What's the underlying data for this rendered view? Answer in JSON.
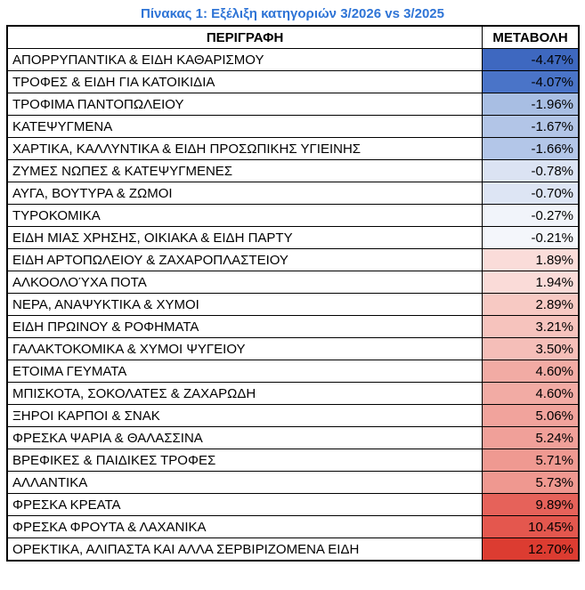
{
  "title": "Πίνακας 1: Εξέλιξη κατηγοριών 3/2026 vs 3/2025",
  "colors": {
    "title": "#2E74D6",
    "border": "#000000",
    "text": "#000000",
    "scale_negative_end": "#3E68C0",
    "scale_mid": "#FFFFFF",
    "scale_positive_end": "#DC3C31"
  },
  "table": {
    "headers": [
      "ΠΕΡΙΓΡΑΦΗ",
      "ΜΕΤΑΒΟΛΗ"
    ],
    "rows": [
      {
        "label": "ΑΠΟΡΡΥΠΑΝΤΙΚΑ & ΕΙΔΗ ΚΑΘΑΡΙΣΜΟΥ",
        "value": "-4.47%",
        "color": "#3E68C0"
      },
      {
        "label": "ΤΡΟΦΕΣ & ΕΙΔΗ ΓΙΑ ΚΑΤΟΙΚΙΔΙΑ",
        "value": "-4.07%",
        "color": "#4A74C8"
      },
      {
        "label": "ΤΡΟΦΙΜΑ ΠΑΝΤΟΠΩΛΕΙΟΥ",
        "value": "-1.96%",
        "color": "#A8BEE3"
      },
      {
        "label": "ΚΑΤΕΨΥΓΜΕΝΑ",
        "value": "-1.67%",
        "color": "#B2C5E7"
      },
      {
        "label": "ΧΑΡΤΙΚΑ, ΚΑΛΛΥΝΤΙΚΑ & ΕΙΔΗ ΠΡΟΣΩΠΙΚΗΣ ΥΓΙΕΙΝΗΣ",
        "value": "-1.66%",
        "color": "#B3C6E8"
      },
      {
        "label": "ΖΥΜΕΣ ΝΩΠΕΣ & ΚΑΤΕΨΥΓΜΕΝΕΣ",
        "value": "-0.78%",
        "color": "#DBE3F3"
      },
      {
        "label": "ΑΥΓΑ, ΒΟΥΤΥΡΑ & ΖΩΜΟΙ",
        "value": "-0.70%",
        "color": "#DDE5F4"
      },
      {
        "label": "ΤΥΡΟΚΟΜΙΚΑ",
        "value": "-0.27%",
        "color": "#F1F4FA"
      },
      {
        "label": "ΕΙΔΗ ΜΙΑΣ ΧΡΗΣΗΣ, ΟΙΚΙΑΚΑ & ΕΙΔΗ ΠΑΡΤΥ",
        "value": "-0.21%",
        "color": "#F4F6FB"
      },
      {
        "label": "ΕΙΔΗ ΑΡΤΟΠΩΛΕΙΟΥ & ΖΑΧΑΡΟΠΛΑΣΤΕΙΟΥ",
        "value": "1.89%",
        "color": "#FADCD9"
      },
      {
        "label": "ΑΛΚΟΟΛΟΎΧΑ ΠΟΤΑ",
        "value": "1.94%",
        "color": "#FADBD8"
      },
      {
        "label": "ΝΕΡΑ, ΑΝΑΨΥΚΤΙΚΑ & ΧΥΜΟΙ",
        "value": "2.89%",
        "color": "#F7C9C3"
      },
      {
        "label": "ΕΙΔΗ ΠΡΩΙΝΟΥ & ΡΟΦΗΜΑΤΑ",
        "value": "3.21%",
        "color": "#F6C3BD"
      },
      {
        "label": "ΓΑΛΑΚΤΟΚΟΜΙΚΑ & ΧΥΜΟΙ ΨΥΓΕΙΟΥ",
        "value": "3.50%",
        "color": "#F5BEB8"
      },
      {
        "label": "ΕΤΟΙΜΑ ΓΕΥΜΑΤΑ",
        "value": "4.60%",
        "color": "#F2ABA4"
      },
      {
        "label": "ΜΠΙΣΚΟΤΑ, ΣΟΚΟΛΑΤΕΣ & ΖΑΧΑΡΩΔΗ",
        "value": "4.60%",
        "color": "#F2ABA4"
      },
      {
        "label": "ΞΗΡΟΙ ΚΑΡΠΟΙ & ΣΝΑΚ",
        "value": "5.06%",
        "color": "#F1A39C"
      },
      {
        "label": "ΦΡΕΣΚΑ ΨΑΡΙΑ & ΘΑΛΑΣΣΙΝΑ",
        "value": "5.24%",
        "color": "#F0A099"
      },
      {
        "label": "ΒΡΕΦΙΚΕΣ & ΠΑΙΔΙΚΕΣ ΤΡΟΦΕΣ",
        "value": "5.71%",
        "color": "#EF9991"
      },
      {
        "label": "ΑΛΛΑΝΤΙΚΑ",
        "value": "5.73%",
        "color": "#EF9890"
      },
      {
        "label": "ΦΡΕΣΚΑ ΚΡΕΑΤΑ",
        "value": "9.89%",
        "color": "#E6625A"
      },
      {
        "label": "ΦΡΕΣΚΑ ΦΡΟΥΤΑ & ΛΑΧΑΝΙΚΑ",
        "value": "10.45%",
        "color": "#E4574E"
      },
      {
        "label": "ΟΡΕΚΤΙΚΑ, ΑΛΙΠΑΣΤΑ ΚΑΙ ΑΛΛΑ ΣΕΡΒΙΡΙΖΟΜΕΝΑ ΕΙΔΗ",
        "value": "12.70%",
        "color": "#DC3C31"
      }
    ]
  },
  "chart_data": {
    "type": "table",
    "title": "Πίνακας 1: Εξέλιξη κατηγοριών 3/2026 vs 3/2025",
    "columns": [
      "ΠΕΡΙΓΡΑΦΗ",
      "ΜΕΤΑΒΟΛΗ"
    ],
    "categories": [
      "ΑΠΟΡΡΥΠΑΝΤΙΚΑ & ΕΙΔΗ ΚΑΘΑΡΙΣΜΟΥ",
      "ΤΡΟΦΕΣ & ΕΙΔΗ ΓΙΑ ΚΑΤΟΙΚΙΔΙΑ",
      "ΤΡΟΦΙΜΑ ΠΑΝΤΟΠΩΛΕΙΟΥ",
      "ΚΑΤΕΨΥΓΜΕΝΑ",
      "ΧΑΡΤΙΚΑ, ΚΑΛΛΥΝΤΙΚΑ & ΕΙΔΗ ΠΡΟΣΩΠΙΚΗΣ ΥΓΙΕΙΝΗΣ",
      "ΖΥΜΕΣ ΝΩΠΕΣ & ΚΑΤΕΨΥΓΜΕΝΕΣ",
      "ΑΥΓΑ, ΒΟΥΤΥΡΑ & ΖΩΜΟΙ",
      "ΤΥΡΟΚΟΜΙΚΑ",
      "ΕΙΔΗ ΜΙΑΣ ΧΡΗΣΗΣ, ΟΙΚΙΑΚΑ & ΕΙΔΗ ΠΑΡΤΥ",
      "ΕΙΔΗ ΑΡΤΟΠΩΛΕΙΟΥ & ΖΑΧΑΡΟΠΛΑΣΤΕΙΟΥ",
      "ΑΛΚΟΟΛΟΎΧΑ ΠΟΤΑ",
      "ΝΕΡΑ, ΑΝΑΨΥΚΤΙΚΑ & ΧΥΜΟΙ",
      "ΕΙΔΗ ΠΡΩΙΝΟΥ & ΡΟΦΗΜΑΤΑ",
      "ΓΑΛΑΚΤΟΚΟΜΙΚΑ & ΧΥΜΟΙ ΨΥΓΕΙΟΥ",
      "ΕΤΟΙΜΑ ΓΕΥΜΑΤΑ",
      "ΜΠΙΣΚΟΤΑ, ΣΟΚΟΛΑΤΕΣ & ΖΑΧΑΡΩΔΗ",
      "ΞΗΡΟΙ ΚΑΡΠΟΙ & ΣΝΑΚ",
      "ΦΡΕΣΚΑ ΨΑΡΙΑ & ΘΑΛΑΣΣΙΝΑ",
      "ΒΡΕΦΙΚΕΣ & ΠΑΙΔΙΚΕΣ ΤΡΟΦΕΣ",
      "ΑΛΛΑΝΤΙΚΑ",
      "ΦΡΕΣΚΑ ΚΡΕΑΤΑ",
      "ΦΡΕΣΚΑ ΦΡΟΥΤΑ & ΛΑΧΑΝΙΚΑ",
      "ΟΡΕΚΤΙΚΑ, ΑΛΙΠΑΣΤΑ ΚΑΙ ΑΛΛΑ ΣΕΡΒΙΡΙΖΟΜΕΝΑ ΕΙΔΗ"
    ],
    "values": [
      -4.47,
      -4.07,
      -1.96,
      -1.67,
      -1.66,
      -0.78,
      -0.7,
      -0.27,
      -0.21,
      1.89,
      1.94,
      2.89,
      3.21,
      3.5,
      4.6,
      4.6,
      5.06,
      5.24,
      5.71,
      5.73,
      9.89,
      10.45,
      12.7
    ],
    "unit": "%",
    "value_range": [
      -4.47,
      12.7
    ],
    "heatmap_scale": {
      "negative": "#3E68C0",
      "mid": "#FFFFFF",
      "positive": "#DC3C31"
    }
  }
}
